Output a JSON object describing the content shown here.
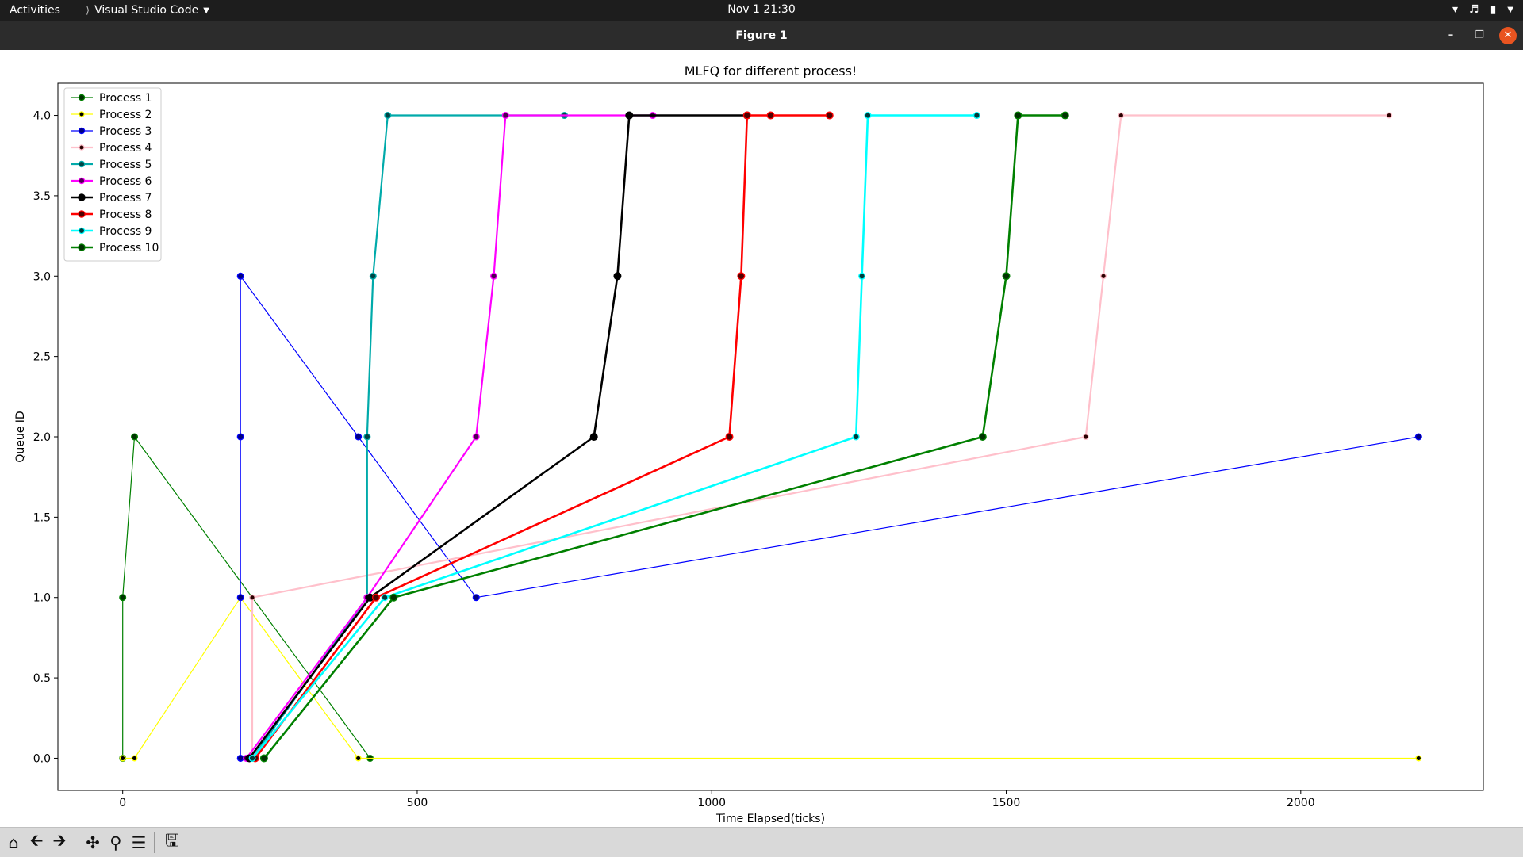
{
  "system_bar": {
    "activities": "Activities",
    "app_name": "Visual Studio Code",
    "clock": "Nov 1  21:30"
  },
  "window": {
    "title": "Figure 1"
  },
  "colors": {
    "topbar": "#1d1d1d",
    "titlebar": "#2c2c2c",
    "close": "#e95420",
    "toolbar": "#d9d9d9"
  },
  "toolbar": {
    "icons": [
      "home-icon",
      "back-arrow-icon",
      "forward-arrow-icon",
      "pan-icon",
      "zoom-icon",
      "configure-subplots-icon",
      "save-icon"
    ]
  },
  "chart_data": {
    "type": "line",
    "title": "MLFQ for different process!",
    "xlabel": "Time Elapsed(ticks)",
    "ylabel": "Queue ID",
    "xlim": [
      -110,
      2310
    ],
    "ylim": [
      -0.2,
      4.2
    ],
    "xticks": [
      0,
      500,
      1000,
      1500,
      2000
    ],
    "xtick_labels": [
      "0",
      "500",
      "1000",
      "1500",
      "2000"
    ],
    "yticks": [
      0.0,
      0.5,
      1.0,
      1.5,
      2.0,
      2.5,
      3.0,
      3.5,
      4.0
    ],
    "ytick_labels": [
      "0.0",
      "0.5",
      "1.0",
      "1.5",
      "2.0",
      "2.5",
      "3.0",
      "3.5",
      "4.0"
    ],
    "grid": false,
    "legend_position": "upper-left",
    "series": [
      {
        "name": "Process 1",
        "color": "#008000",
        "marker_fill": "#003300",
        "marker_size": 6,
        "line_width": 1.2,
        "points": [
          [
            0,
            0
          ],
          [
            0,
            1
          ],
          [
            20,
            2
          ],
          [
            420,
            0
          ]
        ]
      },
      {
        "name": "Process 2",
        "color": "#ffff00",
        "marker_fill": "#000000",
        "marker_size": 5,
        "line_width": 1.2,
        "points": [
          [
            0,
            0
          ],
          [
            20,
            0
          ],
          [
            200,
            1
          ],
          [
            400,
            0
          ],
          [
            2200,
            0
          ]
        ]
      },
      {
        "name": "Process 3",
        "color": "#0000ff",
        "marker_fill": "#000080",
        "marker_size": 6,
        "line_width": 1.2,
        "points": [
          [
            200,
            0
          ],
          [
            200,
            1
          ],
          [
            200,
            2
          ],
          [
            200,
            3
          ],
          [
            400,
            2
          ],
          [
            600,
            1
          ],
          [
            2200,
            2
          ]
        ]
      },
      {
        "name": "Process 4",
        "color": "#ffc0cb",
        "marker_fill": "#2a0000",
        "marker_size": 5,
        "line_width": 2.2,
        "points": [
          [
            220,
            0
          ],
          [
            220,
            1
          ],
          [
            1635,
            2
          ],
          [
            1665,
            3
          ],
          [
            1695,
            4
          ],
          [
            2150,
            4
          ]
        ]
      },
      {
        "name": "Process 5",
        "color": "#00aaaa",
        "marker_fill": "#004444",
        "marker_size": 6,
        "line_width": 2.2,
        "points": [
          [
            220,
            0
          ],
          [
            415,
            1
          ],
          [
            415,
            2
          ],
          [
            425,
            3
          ],
          [
            450,
            4
          ],
          [
            750,
            4
          ]
        ]
      },
      {
        "name": "Process 6",
        "color": "#ff00ff",
        "marker_fill": "#4b0052",
        "marker_size": 6,
        "line_width": 2.2,
        "points": [
          [
            210,
            0
          ],
          [
            415,
            1
          ],
          [
            600,
            2
          ],
          [
            630,
            3
          ],
          [
            650,
            4
          ],
          [
            900,
            4
          ]
        ]
      },
      {
        "name": "Process 7",
        "color": "#000000",
        "marker_fill": "#000000",
        "marker_size": 7,
        "line_width": 2.6,
        "points": [
          [
            215,
            0
          ],
          [
            420,
            1
          ],
          [
            800,
            2
          ],
          [
            840,
            3
          ],
          [
            860,
            4
          ],
          [
            1060,
            4
          ]
        ]
      },
      {
        "name": "Process 8",
        "color": "#ff0000",
        "marker_fill": "#500000",
        "marker_size": 7,
        "line_width": 2.6,
        "points": [
          [
            225,
            0
          ],
          [
            430,
            1
          ],
          [
            1030,
            2
          ],
          [
            1050,
            3
          ],
          [
            1060,
            4
          ],
          [
            1100,
            4
          ],
          [
            1200,
            4
          ]
        ]
      },
      {
        "name": "Process 9",
        "color": "#00ffff",
        "marker_fill": "#003a3a",
        "marker_size": 6,
        "line_width": 2.6,
        "points": [
          [
            220,
            0
          ],
          [
            445,
            1
          ],
          [
            1245,
            2
          ],
          [
            1255,
            3
          ],
          [
            1265,
            4
          ],
          [
            1450,
            4
          ]
        ]
      },
      {
        "name": "Process 10",
        "color": "#008000",
        "marker_fill": "#003300",
        "marker_size": 7,
        "line_width": 2.6,
        "points": [
          [
            240,
            0
          ],
          [
            460,
            1
          ],
          [
            1460,
            2
          ],
          [
            1500,
            3
          ],
          [
            1520,
            4
          ],
          [
            1600,
            4
          ]
        ]
      }
    ]
  }
}
